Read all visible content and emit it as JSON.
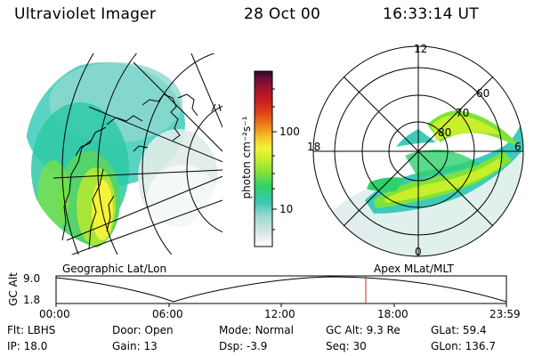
{
  "header": {
    "instrument": "Ultraviolet Imager",
    "date": "28 Oct 00",
    "time": "16:33:14 UT"
  },
  "colorbar": {
    "label": "photon cm⁻²s⁻¹",
    "ticks": [
      "100",
      "10"
    ],
    "scale": "log",
    "colors": [
      "#ffffff",
      "#d8e6e6",
      "#9fd9d0",
      "#3cc8b4",
      "#2fd16b",
      "#7fe23a",
      "#c7ef2a",
      "#f2f23a",
      "#f5c52a",
      "#f08a1a",
      "#e0451c",
      "#c81e22",
      "#a0142e",
      "#6a0d36",
      "#2a0a2a"
    ]
  },
  "left_panel": {
    "label": "Geographic Lat/Lon"
  },
  "right_panel": {
    "label": "Apex MLat/MLT",
    "mlt_labels": {
      "top": "12",
      "left": "18",
      "right": "6",
      "bottom": "0"
    },
    "lat_labels": [
      "60",
      "70",
      "80"
    ]
  },
  "altitude_plot": {
    "ylabel": "GC Alt",
    "yticks": [
      "9.0",
      "1.8"
    ],
    "xticks": [
      "00:00",
      "06:00",
      "12:00",
      "18:00",
      "23:59"
    ],
    "current_time_marker": "16:33",
    "marker_color": "#cc2222"
  },
  "info": {
    "row1": [
      {
        "label": "Flt:",
        "value": "LBHS"
      },
      {
        "label": "Door:",
        "value": "Open"
      },
      {
        "label": "Mode:",
        "value": "Normal"
      },
      {
        "label": "GC Alt:",
        "value": "9.3 Re"
      },
      {
        "label": "GLat:",
        "value": "59.4"
      }
    ],
    "row2": [
      {
        "label": "IP:",
        "value": "18.0"
      },
      {
        "label": "Gain:",
        "value": "13"
      },
      {
        "label": "Dsp:",
        "value": "-3.9"
      },
      {
        "label": "Seq:",
        "value": "30"
      },
      {
        "label": "GLon:",
        "value": "136.7"
      }
    ]
  }
}
